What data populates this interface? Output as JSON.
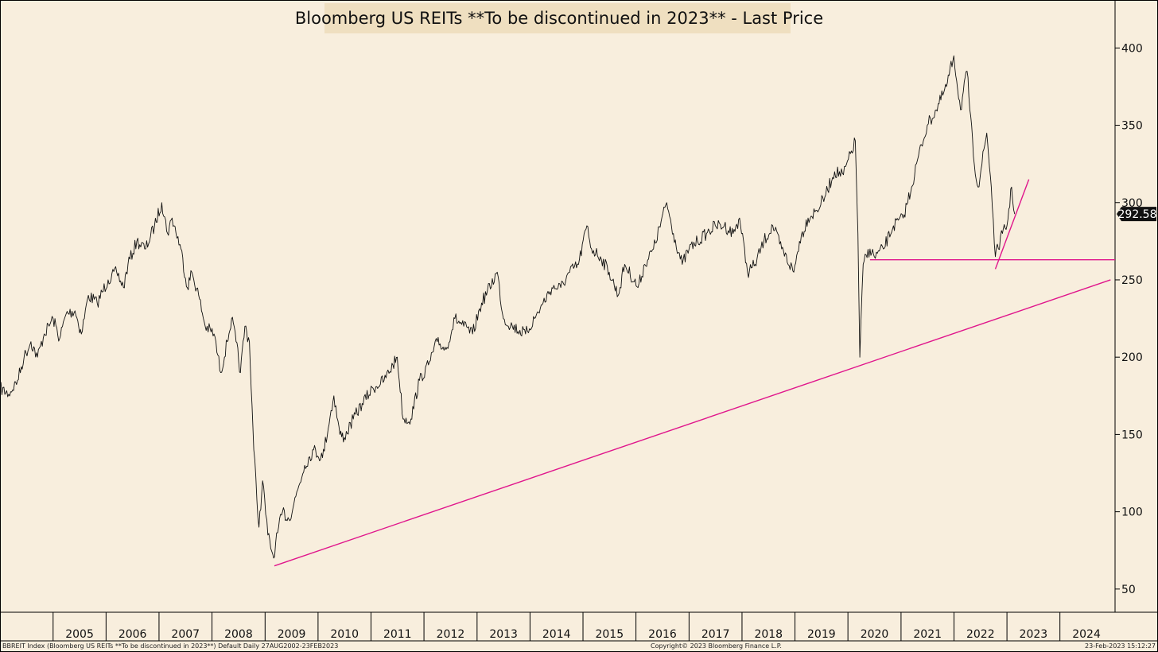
{
  "title": "Bloomberg US REITs **To be discontinued in 2023** - Last Price",
  "footer": {
    "left": "BBREIT Index (Bloomberg US REITs  **To be discontinued  in 2023**) Default  Daily 27AUG2002-23FEB2023",
    "center": "Copyright© 2023 Bloomberg Finance L.P.",
    "right": "23-Feb-2023 15:12:27"
  },
  "colors": {
    "background": "#f8eedd",
    "title_bg": "#efdfc0",
    "price_line": "#111111",
    "trend_line": "#e0168c",
    "tag_bg": "#111111"
  },
  "chart_data": {
    "type": "line",
    "title": "Bloomberg US REITs **To be discontinued in 2023** - Last Price",
    "xlabel": "",
    "ylabel": "",
    "x_ticks": [
      "2005",
      "2006",
      "2007",
      "2008",
      "2009",
      "2010",
      "2011",
      "2012",
      "2013",
      "2014",
      "2015",
      "2016",
      "2017",
      "2018",
      "2019",
      "2020",
      "2021",
      "2022",
      "2023",
      "2024"
    ],
    "y_ticks": [
      50,
      100,
      150,
      200,
      250,
      300,
      350,
      400
    ],
    "ylim": [
      35,
      430
    ],
    "xlim": [
      "2004-01-01",
      "2025-01-15"
    ],
    "last_price_label": "292.58",
    "series": [
      {
        "points": [
          [
            "2004-01-01",
            180
          ],
          [
            "2004-03-01",
            176
          ],
          [
            "2004-05-01",
            185
          ],
          [
            "2004-06-15",
            200
          ],
          [
            "2004-08-01",
            210
          ],
          [
            "2004-09-15",
            200
          ],
          [
            "2004-11-01",
            215
          ],
          [
            "2005-01-01",
            225
          ],
          [
            "2005-02-15",
            212
          ],
          [
            "2005-04-01",
            228
          ],
          [
            "2005-06-01",
            230
          ],
          [
            "2005-07-15",
            215
          ],
          [
            "2005-09-01",
            240
          ],
          [
            "2005-11-01",
            235
          ],
          [
            "2006-01-15",
            250
          ],
          [
            "2006-03-15",
            255
          ],
          [
            "2006-05-01",
            245
          ],
          [
            "2006-06-01",
            260
          ],
          [
            "2006-08-01",
            275
          ],
          [
            "2006-10-01",
            270
          ],
          [
            "2006-12-01",
            285
          ],
          [
            "2007-01-20",
            300
          ],
          [
            "2007-03-01",
            280
          ],
          [
            "2007-04-01",
            290
          ],
          [
            "2007-06-01",
            270
          ],
          [
            "2007-07-15",
            245
          ],
          [
            "2007-08-15",
            255
          ],
          [
            "2007-10-01",
            240
          ],
          [
            "2007-11-15",
            220
          ],
          [
            "2008-01-15",
            215
          ],
          [
            "2008-03-01",
            190
          ],
          [
            "2008-04-15",
            210
          ],
          [
            "2008-05-15",
            225
          ],
          [
            "2008-06-15",
            210
          ],
          [
            "2008-07-15",
            190
          ],
          [
            "2008-08-15",
            220
          ],
          [
            "2008-09-15",
            210
          ],
          [
            "2008-10-15",
            140
          ],
          [
            "2008-11-20",
            90
          ],
          [
            "2008-12-15",
            120
          ],
          [
            "2009-01-20",
            85
          ],
          [
            "2009-03-01",
            70
          ],
          [
            "2009-03-15",
            80
          ],
          [
            "2009-05-01",
            100
          ],
          [
            "2009-06-15",
            95
          ],
          [
            "2009-08-01",
            110
          ],
          [
            "2009-10-01",
            130
          ],
          [
            "2009-12-01",
            140
          ],
          [
            "2010-02-01",
            135
          ],
          [
            "2010-04-20",
            175
          ],
          [
            "2010-06-01",
            150
          ],
          [
            "2010-07-01",
            148
          ],
          [
            "2010-09-01",
            160
          ],
          [
            "2010-11-01",
            170
          ],
          [
            "2011-01-15",
            180
          ],
          [
            "2011-04-01",
            185
          ],
          [
            "2011-06-01",
            195
          ],
          [
            "2011-07-01",
            200
          ],
          [
            "2011-08-10",
            160
          ],
          [
            "2011-10-03",
            160
          ],
          [
            "2011-12-01",
            185
          ],
          [
            "2012-02-01",
            195
          ],
          [
            "2012-04-01",
            210
          ],
          [
            "2012-06-01",
            205
          ],
          [
            "2012-08-01",
            225
          ],
          [
            "2012-10-01",
            220
          ],
          [
            "2012-12-01",
            215
          ],
          [
            "2013-02-01",
            235
          ],
          [
            "2013-05-20",
            255
          ],
          [
            "2013-07-01",
            225
          ],
          [
            "2013-09-01",
            220
          ],
          [
            "2013-12-01",
            215
          ],
          [
            "2014-02-01",
            225
          ],
          [
            "2014-04-01",
            235
          ],
          [
            "2014-06-01",
            245
          ],
          [
            "2014-08-01",
            245
          ],
          [
            "2014-10-01",
            255
          ],
          [
            "2014-12-01",
            260
          ],
          [
            "2015-01-28",
            285
          ],
          [
            "2015-03-01",
            270
          ],
          [
            "2015-05-01",
            265
          ],
          [
            "2015-07-01",
            255
          ],
          [
            "2015-09-01",
            240
          ],
          [
            "2015-10-15",
            260
          ],
          [
            "2016-01-15",
            245
          ],
          [
            "2016-03-01",
            260
          ],
          [
            "2016-05-01",
            270
          ],
          [
            "2016-07-31",
            300
          ],
          [
            "2016-09-15",
            280
          ],
          [
            "2016-11-15",
            260
          ],
          [
            "2017-01-01",
            270
          ],
          [
            "2017-03-01",
            275
          ],
          [
            "2017-05-01",
            280
          ],
          [
            "2017-07-01",
            285
          ],
          [
            "2017-09-01",
            285
          ],
          [
            "2017-11-01",
            280
          ],
          [
            "2017-12-15",
            290
          ],
          [
            "2018-02-08",
            255
          ],
          [
            "2018-04-01",
            260
          ],
          [
            "2018-06-01",
            275
          ],
          [
            "2018-08-01",
            285
          ],
          [
            "2018-10-01",
            270
          ],
          [
            "2018-12-24",
            255
          ],
          [
            "2019-02-01",
            275
          ],
          [
            "2019-04-01",
            290
          ],
          [
            "2019-06-01",
            295
          ],
          [
            "2019-08-01",
            305
          ],
          [
            "2019-10-01",
            320
          ],
          [
            "2019-12-01",
            318
          ],
          [
            "2020-02-21",
            340
          ],
          [
            "2020-03-10",
            280
          ],
          [
            "2020-03-23",
            200
          ],
          [
            "2020-04-15",
            260
          ],
          [
            "2020-06-01",
            270
          ],
          [
            "2020-07-01",
            265
          ],
          [
            "2020-09-01",
            270
          ],
          [
            "2020-11-10",
            285
          ],
          [
            "2021-01-15",
            290
          ],
          [
            "2021-03-15",
            310
          ],
          [
            "2021-05-01",
            330
          ],
          [
            "2021-07-01",
            350
          ],
          [
            "2021-09-01",
            360
          ],
          [
            "2021-11-10",
            375
          ],
          [
            "2021-12-31",
            395
          ],
          [
            "2022-02-15",
            360
          ],
          [
            "2022-04-01",
            385
          ],
          [
            "2022-05-15",
            330
          ],
          [
            "2022-06-16",
            310
          ],
          [
            "2022-08-15",
            345
          ],
          [
            "2022-09-15",
            310
          ],
          [
            "2022-10-13",
            265
          ],
          [
            "2022-12-01",
            280
          ],
          [
            "2023-01-01",
            285
          ],
          [
            "2023-02-02",
            310
          ],
          [
            "2023-02-23",
            292.58
          ]
        ]
      }
    ],
    "trendlines": [
      {
        "from": [
          "2009-03-06",
          65
        ],
        "to": [
          "2024-12-15",
          250
        ]
      },
      {
        "from": [
          "2020-06-01",
          263
        ],
        "to": [
          "2025-01-15",
          263
        ]
      },
      {
        "from": [
          "2022-10-13",
          257
        ],
        "to": [
          "2023-06-01",
          315
        ]
      }
    ]
  }
}
